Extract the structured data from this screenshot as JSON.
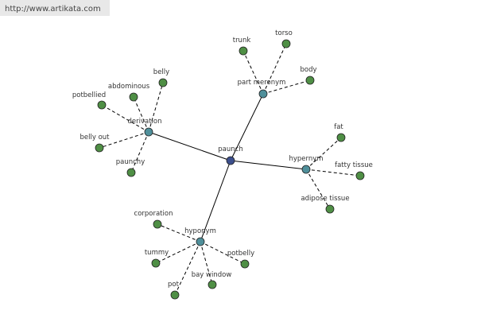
{
  "watermark": "http://www.artikata.com",
  "center": {
    "label": "paunch"
  },
  "groups": [
    {
      "label": "part meronym",
      "leaves": [
        "trunk",
        "torso",
        "body"
      ]
    },
    {
      "label": "hypernym",
      "leaves": [
        "fat",
        "fatty tissue",
        "adipose tissue"
      ]
    },
    {
      "label": "derivation",
      "leaves": [
        "belly",
        "abdominous",
        "potbellied",
        "belly out",
        "paunchy"
      ]
    },
    {
      "label": "hyponym",
      "leaves": [
        "corporation",
        "tummy",
        "potbelly",
        "bay window",
        "pot"
      ]
    }
  ]
}
